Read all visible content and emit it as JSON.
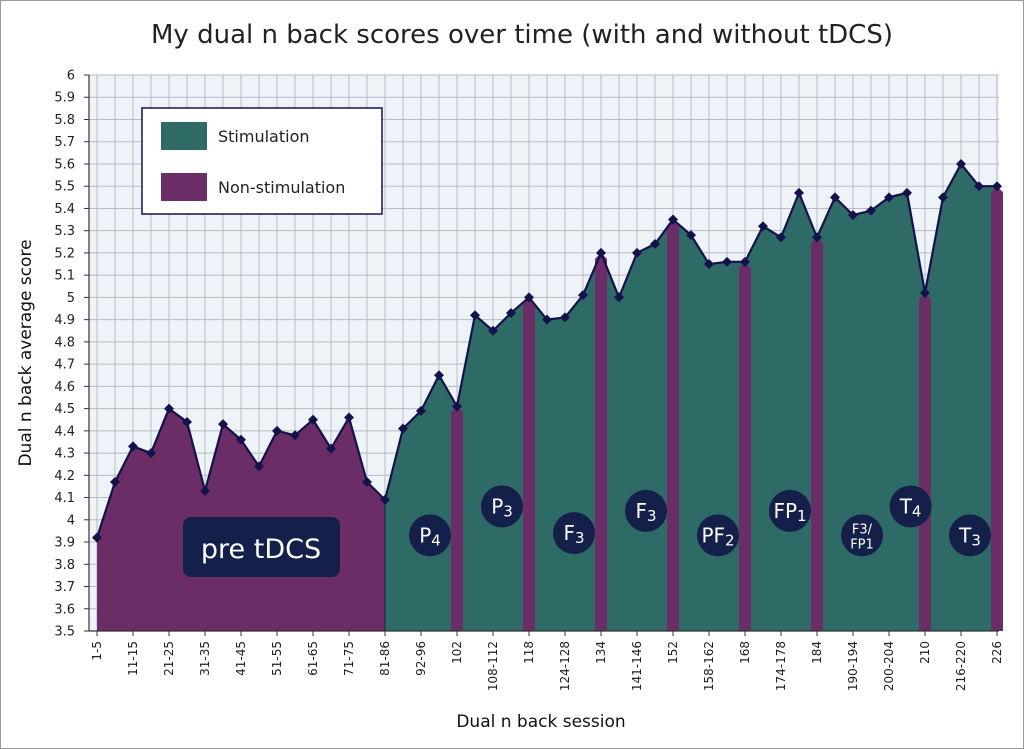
{
  "chart_data": {
    "type": "area",
    "title": "My dual n back scores over time (with and without tDCS)",
    "xlabel": "Dual n back session",
    "ylabel": "Dual n back average score",
    "ylim": [
      3.5,
      6
    ],
    "ytick_step": 0.1,
    "yticks": [
      "3.5",
      "3.6",
      "3.7",
      "3.8",
      "3.9",
      "4",
      "4.1",
      "4.2",
      "4.3",
      "4.4",
      "4.5",
      "4.6",
      "4.7",
      "4.8",
      "4.9",
      "5",
      "5.1",
      "5.2",
      "5.3",
      "5.4",
      "5.5",
      "5.6",
      "5.7",
      "5.8",
      "5.9",
      "6"
    ],
    "grid": true,
    "xtick_labels": [
      "1-5",
      "11-15",
      "21-25",
      "31-35",
      "41-45",
      "51-55",
      "61-65",
      "71-75",
      "81-86",
      "92-96",
      "102",
      "108-112",
      "118",
      "124-128",
      "134",
      "141-146",
      "152",
      "158-162",
      "168",
      "174-178",
      "184",
      "190-194",
      "200-204",
      "210",
      "216-220",
      "226"
    ],
    "values": [
      3.92,
      4.17,
      4.33,
      4.3,
      4.5,
      4.44,
      4.13,
      4.43,
      4.36,
      4.24,
      4.4,
      4.38,
      4.45,
      4.32,
      4.46,
      4.17,
      4.09,
      4.41,
      4.49,
      4.65,
      4.51,
      4.92,
      4.85,
      4.93,
      5.0,
      4.9,
      4.91,
      5.01,
      5.2,
      5.0,
      5.2,
      5.24,
      5.35,
      5.28,
      5.15,
      5.16,
      5.16,
      5.32,
      5.27,
      5.47,
      5.27,
      5.45,
      5.37,
      5.39,
      5.45,
      5.47,
      5.02,
      5.45,
      5.6,
      5.5,
      5.5
    ],
    "non_stimulation_spikes": [
      20,
      24,
      28,
      32,
      36,
      40,
      46,
      50
    ],
    "pre_tdcs_points": 16,
    "legend": {
      "position": "top-left",
      "entries": [
        {
          "label": "Stimulation",
          "color": "#2e6b67"
        },
        {
          "label": "Non-stimulation",
          "color": "#6b2d66"
        }
      ]
    },
    "colors": {
      "stimulation": "#2e6b67",
      "non_stimulation": "#6b2d66",
      "line": "#14124a",
      "badge": "#14204a",
      "background": "#eef3f8"
    },
    "pre_tdcs_label": "pre tDCS",
    "annotations": [
      {
        "main": "P",
        "sub": "4",
        "at": 18.5,
        "y": 3.93
      },
      {
        "main": "P",
        "sub": "3",
        "at": 22.5,
        "y": 4.06
      },
      {
        "main": "F",
        "sub": "3",
        "at": 26.5,
        "y": 3.94
      },
      {
        "main": "F",
        "sub": "3",
        "at": 30.5,
        "y": 4.04
      },
      {
        "main": "PF",
        "sub": "2",
        "at": 34.5,
        "y": 3.93
      },
      {
        "main": "FP",
        "sub": "1",
        "at": 38.5,
        "y": 4.04
      },
      {
        "main": "F3/",
        "sub": "FP1",
        "at": 42.5,
        "y": 3.93,
        "stacked": true
      },
      {
        "main": "T",
        "sub": "4",
        "at": 45.2,
        "y": 4.06
      },
      {
        "main": "T",
        "sub": "3",
        "at": 48.5,
        "y": 3.93
      }
    ]
  }
}
